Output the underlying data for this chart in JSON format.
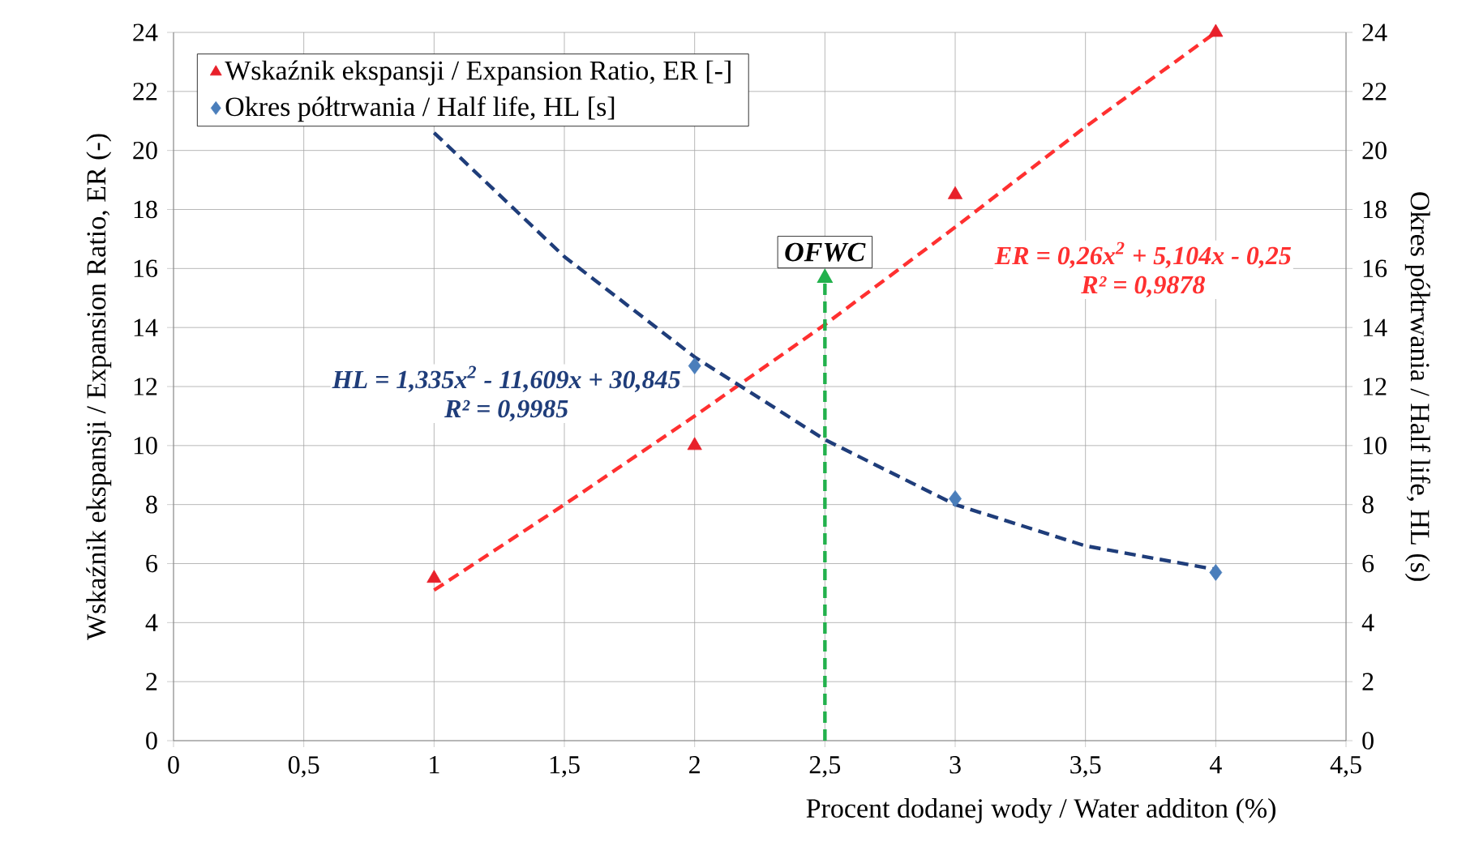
{
  "chart_data": {
    "type": "scatter",
    "xlabel": "Procent dodanej wody / Water additon (%)",
    "ylabel": "Wskaźnik ekspansji / Expansion Ratio, ER (-)",
    "y2label": "Okres półtrwania / Half life, HL (s)",
    "x": [
      1,
      2,
      3,
      4
    ],
    "series": [
      {
        "name": "Wskaźnik ekspansji / Expansion Ratio, ER [-]",
        "color": "#e8202a",
        "marker": "triangle",
        "values": [
          5.5,
          10,
          18.5,
          24
        ]
      },
      {
        "name": "Okres półtrwania / Half life, HL [s]",
        "color": "#4a7ebb",
        "marker": "diamond",
        "axis": "y2",
        "values": [
          null,
          12.7,
          8.2,
          5.7
        ]
      },
      {
        "type": "line",
        "name": "*ER = 0,26x$^{2}$ + 5,104x - 0,25*",
        "color": "#ff3030",
        "line_style": "dashed",
        "marker": "none",
        "x": [
          1,
          1.5,
          2,
          2.5,
          3,
          3.5,
          4
        ],
        "values": [
          5.1,
          8.0,
          11.0,
          14.1,
          17.4,
          20.8,
          24.0
        ]
      },
      {
        "type": "line",
        "name": "*HL = 1,335x$^{2}$ - 11,609x + 30,845*",
        "color": "#1f3d7a",
        "line_style": "dashed",
        "marker": "none",
        "axis": "y2",
        "x": [
          1,
          1.5,
          2,
          2.5,
          3,
          3.5,
          4
        ],
        "values": [
          20.6,
          16.4,
          13.0,
          10.2,
          8.0,
          6.6,
          5.8
        ]
      }
    ],
    "annotations": [
      "*R² = 0,9878*",
      "*R² = 0,9985*"
    ],
    "ref_lines": [
      {
        "axis": "x",
        "value": 2.5,
        "label": "*OFWC*",
        "color": "#22b14c",
        "line_style": "dashed"
      }
    ],
    "xlim": [
      0,
      4.5
    ],
    "xticks": [
      0,
      {
        "value": 0.5,
        "label": "0,5"
      },
      1,
      {
        "value": 1.5,
        "label": "1,5"
      },
      2,
      {
        "value": 2.5,
        "label": "2,5"
      },
      3,
      {
        "value": 3.5,
        "label": "3,5"
      },
      4,
      {
        "value": 4.5,
        "label": "4,5"
      }
    ],
    "ylim": [
      0,
      24
    ],
    "yticks": [
      0,
      2,
      4,
      6,
      8,
      10,
      12,
      14,
      16,
      18,
      20,
      22,
      24
    ],
    "y2lim": [
      0,
      24
    ],
    "y2ticks": [
      0,
      2,
      4,
      6,
      8,
      10,
      12,
      14,
      16,
      18,
      20,
      22,
      24
    ],
    "grid": true,
    "legend": "top left"
  }
}
